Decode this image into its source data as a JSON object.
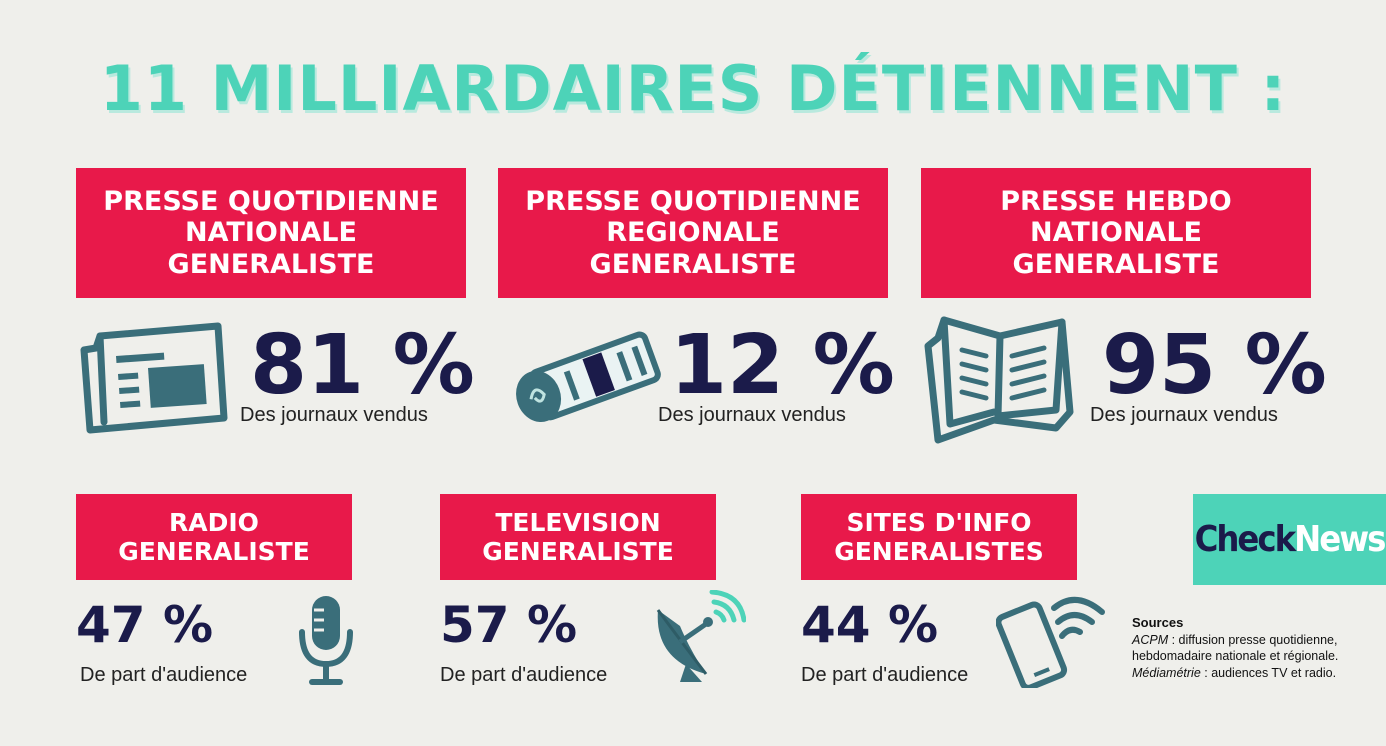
{
  "title": "11 MILLIARDAIRES DÉTIENNENT :",
  "top_cards": [
    {
      "lines": [
        "PRESSE QUOTIDIENNE",
        "NATIONALE",
        "GENERALISTE"
      ],
      "value": "81 %",
      "caption": "Des journaux vendus",
      "icon": "newspaper-icon"
    },
    {
      "lines": [
        "PRESSE QUOTIDIENNE",
        "REGIONALE",
        "GENERALISTE"
      ],
      "value": "12 %",
      "caption": "Des journaux vendus",
      "icon": "rolled-newspaper-icon"
    },
    {
      "lines": [
        "PRESSE HEBDO",
        "NATIONALE",
        "GENERALISTE"
      ],
      "value": "95 %",
      "caption": "Des journaux vendus",
      "icon": "open-magazine-icon"
    }
  ],
  "bottom_cards": [
    {
      "lines": [
        "RADIO",
        "GENERALISTE"
      ],
      "value": "47 %",
      "caption": "De part d'audience",
      "icon": "microphone-icon"
    },
    {
      "lines": [
        "TELEVISION",
        "GENERALISTE"
      ],
      "value": "57 %",
      "caption": "De part d'audience",
      "icon": "satellite-dish-icon"
    },
    {
      "lines": [
        "SITES D'INFO",
        "GENERALISTES"
      ],
      "value": "44 %",
      "caption": "De part d'audience",
      "icon": "smartphone-wifi-icon"
    }
  ],
  "logo": {
    "part1": "Check",
    "part2": "News"
  },
  "sources": {
    "heading": "Sources",
    "line1_em": "ACPM",
    "line1": " : diffusion presse quotidienne, hebdomadaire nationale et régionale.",
    "line2_em": "Médiamétrie",
    "line2": " : audiences TV et radio."
  },
  "colors": {
    "accent": "#e8194a",
    "title": "#4dd3b8",
    "number": "#1b1b4a",
    "icon": "#3a6e7a",
    "background": "#efefeb"
  }
}
